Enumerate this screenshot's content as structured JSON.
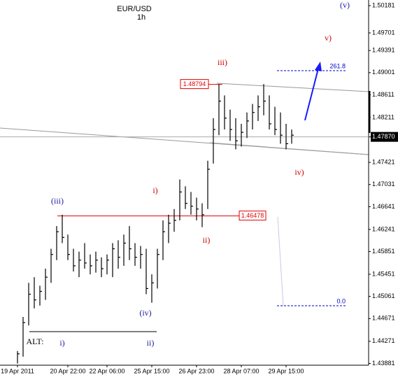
{
  "chart_data": {
    "type": "ohlc",
    "title": "EUR/USD",
    "subtitle": "1h",
    "categories": [
      "19 Apr 2011",
      null,
      null,
      null,
      null,
      null,
      null,
      null,
      null,
      "20 Apr 22:00",
      null,
      null,
      null,
      null,
      null,
      null,
      "22 Apr 06:00",
      null,
      null,
      null,
      null,
      null,
      null,
      null,
      "25 Apr 15:00",
      null,
      null,
      null,
      null,
      null,
      null,
      null,
      "26 Apr 23:00",
      null,
      null,
      null,
      null,
      null,
      null,
      null,
      "28 Apr 07:00",
      null,
      null,
      null,
      null,
      null,
      null,
      null,
      "29 Apr 15:00",
      null
    ],
    "high": [
      1.441,
      1.447,
      1.453,
      1.454,
      1.4525,
      1.4555,
      1.459,
      1.463,
      1.465,
      1.4615,
      1.459,
      1.4585,
      1.46,
      1.458,
      1.4585,
      1.4575,
      1.458,
      1.46,
      1.4605,
      1.4615,
      1.463,
      1.46,
      1.4595,
      1.459,
      1.4545,
      1.459,
      1.464,
      1.465,
      1.466,
      1.4712,
      1.47,
      1.469,
      1.468,
      1.467,
      1.4745,
      1.482,
      1.488,
      1.486,
      1.4835,
      1.482,
      1.481,
      1.483,
      1.4845,
      1.486,
      1.488,
      1.486,
      1.484,
      1.483,
      1.481,
      1.48
    ],
    "low": [
      1.4388,
      1.44,
      1.4455,
      1.4485,
      1.449,
      1.45,
      1.453,
      1.457,
      1.46,
      1.457,
      1.455,
      1.454,
      1.4555,
      1.4545,
      1.4548,
      1.454,
      1.4545,
      1.454,
      1.4555,
      1.456,
      1.457,
      1.456,
      1.4555,
      1.451,
      1.4495,
      1.452,
      1.457,
      1.46,
      1.462,
      1.464,
      1.466,
      1.465,
      1.464,
      1.4628,
      1.466,
      1.474,
      1.479,
      1.48,
      1.478,
      1.4765,
      1.477,
      1.4785,
      1.48,
      1.4815,
      1.4825,
      1.48,
      1.479,
      1.4775,
      1.4765,
      1.4775
    ],
    "close": [
      1.4405,
      1.446,
      1.451,
      1.45,
      1.4515,
      1.454,
      1.458,
      1.462,
      1.461,
      1.458,
      1.456,
      1.457,
      1.4565,
      1.456,
      1.457,
      1.4555,
      1.457,
      1.459,
      1.4575,
      1.46,
      1.459,
      1.4575,
      1.458,
      1.452,
      1.453,
      1.458,
      1.462,
      1.4635,
      1.464,
      1.469,
      1.467,
      1.4665,
      1.466,
      1.465,
      1.473,
      1.48,
      1.485,
      1.482,
      1.48,
      1.478,
      1.4795,
      1.4815,
      1.483,
      1.484,
      1.485,
      1.481,
      1.48,
      1.479,
      1.4775,
      1.479
    ],
    "color": "#000000",
    "ylim": [
      1.4385,
      1.5028
    ],
    "yticks": [
      1.50181,
      1.49701,
      1.49391,
      1.49001,
      1.48611,
      1.48211,
      {
        "value": 1.4787,
        "label": "1.47870"
      },
      1.47421,
      1.47031,
      1.46641,
      1.46241,
      1.45851,
      1.45451,
      1.45061,
      1.44671,
      1.44271,
      1.43881
    ],
    "levels": [
      1.48794,
      1.46478
    ],
    "level_color": "#e00000",
    "fib_levels": [
      261.8,
      {
        "value": 0,
        "label": "0.0"
      }
    ],
    "fib_color": "#0000c8",
    "annotations": [
      {
        "text": "(v)",
        "color": "#2020a0"
      },
      {
        "text": "v)",
        "color": "#d00000"
      },
      {
        "text": "iii)",
        "color": "#d00000"
      },
      {
        "text": "(iii)",
        "color": "#2020a0"
      },
      {
        "text": "i)",
        "color": "#d00000"
      },
      {
        "text": "ii)",
        "color": "#d00000"
      },
      {
        "text": "(iv)",
        "color": "#2020a0"
      },
      {
        "text": "iv)",
        "color": "#d00000"
      },
      {
        "text": "ALT:",
        "color": "#000000"
      },
      {
        "text": "i)",
        "color": "#2020a0"
      },
      {
        "text": "ii)",
        "color": "#2020a0"
      }
    ]
  }
}
